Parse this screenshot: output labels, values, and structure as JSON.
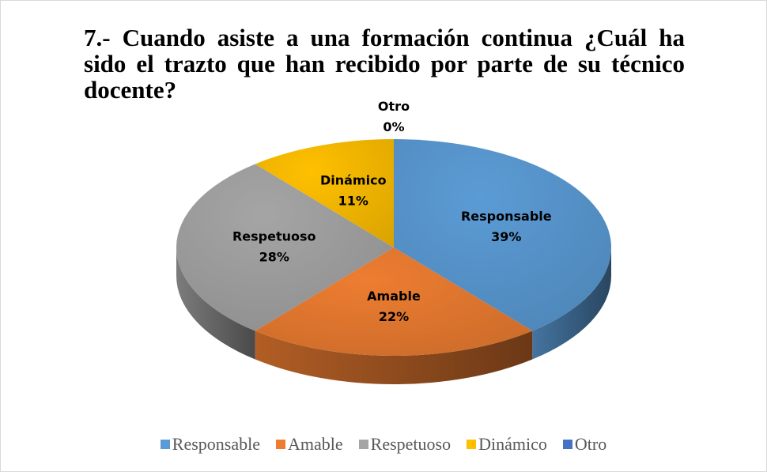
{
  "chart_data": {
    "type": "pie",
    "title": "7.- Cuando asiste a una formación continua ¿Cuál ha sido el trazto que han recibido por parte de su técnico docente?",
    "categories": [
      "Responsable",
      "Amable",
      "Respetuoso",
      "Dinámico",
      "Otro"
    ],
    "values": [
      39,
      22,
      28,
      11,
      0
    ],
    "value_labels": [
      "39%",
      "22%",
      "28%",
      "11%",
      "0%"
    ],
    "colors": [
      "#5b9bd5",
      "#ed7d31",
      "#a5a5a5",
      "#ffc000",
      "#4472c4"
    ],
    "legend": "bottom"
  }
}
